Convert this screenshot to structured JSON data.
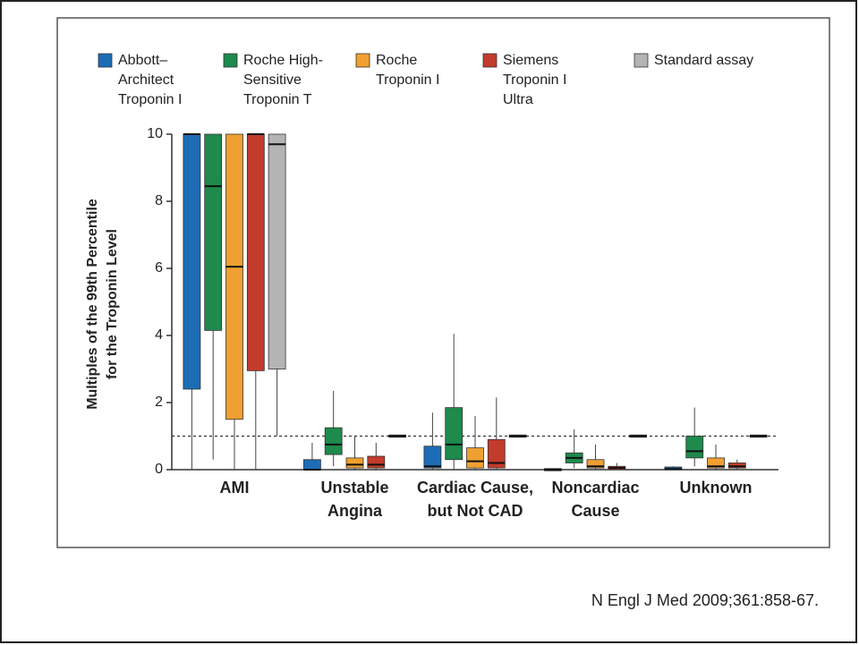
{
  "chart_data": {
    "type": "box",
    "y_label": [
      "Multiples of the 99th Percentile",
      "for the Troponin Level"
    ],
    "categories": [
      [
        "AMI"
      ],
      [
        "Unstable",
        "Angina"
      ],
      [
        "Cardiac Cause,",
        "but Not CAD"
      ],
      [
        "Noncardiac",
        "Cause"
      ],
      [
        "Unknown"
      ]
    ],
    "series": [
      {
        "name": [
          "Abbott–",
          "Architect",
          "Troponin I"
        ],
        "color": "#1c6db6",
        "values": [
          [
            0,
            2.4,
            10,
            10,
            10
          ],
          [
            0,
            0,
            0,
            0.3,
            0.8
          ],
          [
            0,
            0.05,
            0.1,
            0.7,
            1.7
          ],
          [
            0,
            0,
            0,
            0,
            0
          ],
          [
            0,
            0,
            0.02,
            0.08,
            0.1
          ]
        ]
      },
      {
        "name": [
          "Roche High-",
          "Sensitive",
          "Troponin T"
        ],
        "color": "#1e8a4c",
        "values": [
          [
            0.3,
            4.15,
            8.45,
            10,
            10
          ],
          [
            0.1,
            0.45,
            0.75,
            1.25,
            2.35
          ],
          [
            0,
            0.3,
            0.75,
            1.85,
            4.05
          ],
          [
            0.05,
            0.2,
            0.35,
            0.5,
            1.2
          ],
          [
            0.1,
            0.35,
            0.55,
            1.0,
            1.85
          ]
        ]
      },
      {
        "name": [
          "Roche",
          "Troponin I"
        ],
        "color": "#f0a030",
        "values": [
          [
            0,
            1.5,
            6.05,
            10,
            10
          ],
          [
            0,
            0.05,
            0.15,
            0.35,
            1.0
          ],
          [
            0,
            0.05,
            0.25,
            0.65,
            1.6
          ],
          [
            0,
            0.05,
            0.1,
            0.3,
            0.75
          ],
          [
            0,
            0.05,
            0.1,
            0.35,
            0.75
          ]
        ]
      },
      {
        "name": [
          "Siemens",
          "Troponin I",
          "Ultra"
        ],
        "color": "#c23b2b",
        "values": [
          [
            0,
            2.95,
            10,
            10,
            10
          ],
          [
            0,
            0.05,
            0.15,
            0.4,
            0.8
          ],
          [
            0,
            0.05,
            0.2,
            0.9,
            2.15
          ],
          [
            0,
            0,
            0.05,
            0.1,
            0.2
          ],
          [
            0,
            0.05,
            0.1,
            0.2,
            0.3
          ]
        ]
      },
      {
        "name": [
          "Standard assay"
        ],
        "color": "#b4b4b4",
        "values": [
          [
            1.0,
            3.0,
            9.7,
            10,
            10
          ],
          [
            1,
            1,
            1,
            1,
            1
          ],
          [
            1,
            1,
            1,
            1,
            1
          ],
          [
            1,
            1,
            1,
            1,
            1
          ],
          [
            1,
            1,
            1,
            1,
            1
          ]
        ]
      }
    ],
    "ylim": [
      0,
      10
    ],
    "yticks": [
      0,
      2,
      4,
      6,
      8,
      10
    ],
    "reference_line": 1
  },
  "citation": "N Engl J Med 2009;361:858-67."
}
